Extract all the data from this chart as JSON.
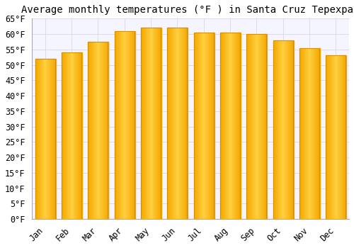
{
  "title": "Average monthly temperatures (°F ) in Santa Cruz Tepexpan",
  "months": [
    "Jan",
    "Feb",
    "Mar",
    "Apr",
    "May",
    "Jun",
    "Jul",
    "Aug",
    "Sep",
    "Oct",
    "Nov",
    "Dec"
  ],
  "values": [
    52,
    54,
    57.5,
    61,
    62,
    62,
    60.5,
    60.5,
    60,
    58,
    55.5,
    53
  ],
  "bar_color_center": "#FFD040",
  "bar_color_edge": "#F5A800",
  "bar_edge_color": "#CC8800",
  "background_color": "#FFFFFF",
  "plot_bg_color": "#F5F5FF",
  "grid_color": "#D8D8E8",
  "ylim": [
    0,
    65
  ],
  "yticks": [
    0,
    5,
    10,
    15,
    20,
    25,
    30,
    35,
    40,
    45,
    50,
    55,
    60,
    65
  ],
  "ylabel_suffix": "°F",
  "title_fontsize": 10,
  "tick_fontsize": 8.5,
  "font_family": "monospace",
  "bar_width": 0.75
}
